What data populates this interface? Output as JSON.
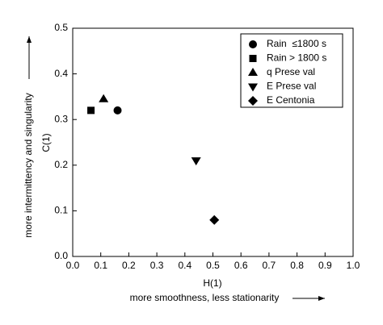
{
  "chart_data": {
    "type": "scatter",
    "xlabel": "H(1)",
    "xlabel_note": "more smoothness, less stationarity",
    "ylabel": "C(1)",
    "ylabel_note": "more intermittency and singularity",
    "xlim": [
      0,
      1
    ],
    "ylim": [
      0,
      0.5
    ],
    "xticks": [
      {
        "value": 0,
        "label": "0.0"
      },
      0.1,
      0.2,
      0.3,
      0.4,
      0.5,
      0.6,
      0.7,
      0.8,
      0.9,
      {
        "value": 1,
        "label": "1.0"
      }
    ],
    "yticks": [
      {
        "value": 0,
        "label": "0.0"
      },
      0.1,
      0.2,
      0.3,
      0.4,
      0.5
    ],
    "legend": "upper right",
    "series": [
      {
        "name": "Rain  ≤1800 s",
        "marker": "circle",
        "color": "#000000",
        "x": [
          0.16
        ],
        "values": [
          0.32
        ]
      },
      {
        "name": "Rain > 1800 s",
        "marker": "square",
        "color": "#000000",
        "x": [
          0.065
        ],
        "values": [
          0.32
        ]
      },
      {
        "name": "q Prese val",
        "marker": "triangle-up",
        "color": "#000000",
        "x": [
          0.11
        ],
        "values": [
          0.345
        ]
      },
      {
        "name": "E Prese val",
        "marker": "triangle-down",
        "color": "#000000",
        "x": [
          0.44
        ],
        "values": [
          0.21
        ]
      },
      {
        "name": "E Centonia",
        "marker": "diamond",
        "color": "#000000",
        "x": [
          0.505
        ],
        "values": [
          0.08
        ]
      }
    ]
  }
}
